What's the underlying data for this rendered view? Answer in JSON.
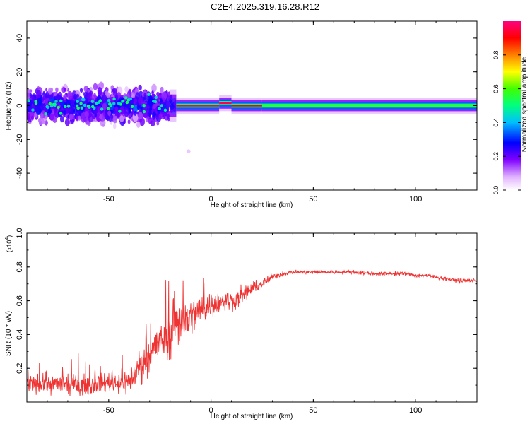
{
  "title": "C2E4.2025.319.16.28.R12",
  "chart_data": [
    {
      "type": "heatmap",
      "title": "C2E4.2025.319.16.28.R12",
      "xlabel": "Height of straight line (km)",
      "ylabel": "Frequency (Hz)",
      "xlim": [
        -90,
        130
      ],
      "ylim": [
        -50,
        50
      ],
      "xticks": [
        "-50",
        "0",
        "50",
        "100"
      ],
      "xtick_values": [
        -50,
        0,
        50,
        100
      ],
      "yticks": [
        "-40",
        "-20",
        "0",
        "20",
        "40"
      ],
      "ytick_values": [
        -40,
        -20,
        0,
        20,
        40
      ],
      "colorbar": {
        "label": "Normalized spectral amplitude",
        "range": [
          0,
          1
        ],
        "ticks": [
          "0.0",
          "0.2",
          "0.4",
          "0.6",
          "0.8"
        ],
        "tick_values": [
          0.0,
          0.2,
          0.4,
          0.6,
          0.8
        ],
        "colors": [
          "#ffffff",
          "#e0b0ff",
          "#8000ff",
          "#0000ff",
          "#00bfff",
          "#00ff80",
          "#40ff00",
          "#ffff00",
          "#ff8000",
          "#ff0000",
          "#ff0080"
        ]
      },
      "segments": [
        {
          "x": [
            -90,
            -20
          ],
          "center_hz": 0,
          "spread_hz": 14,
          "amplitude": 0.25,
          "pattern": "noisy"
        },
        {
          "x": [
            -20,
            -17
          ],
          "center_hz": 0,
          "spread_hz": 3,
          "amplitude": 0.5,
          "pattern": "transition"
        },
        {
          "x": [
            -17,
            4
          ],
          "center_hz": 0,
          "spread_hz": 1.5,
          "amplitude": 0.95,
          "pattern": "band"
        },
        {
          "x": [
            4,
            10
          ],
          "center_hz": 1.5,
          "spread_hz": 1.5,
          "amplitude": 0.95,
          "pattern": "band"
        },
        {
          "x": [
            10,
            25
          ],
          "center_hz": 0,
          "spread_hz": 1.5,
          "amplitude": 0.9,
          "pattern": "band"
        },
        {
          "x": [
            25,
            130
          ],
          "center_hz": 0,
          "spread_hz": 1.5,
          "amplitude": 0.6,
          "pattern": "band"
        }
      ],
      "outliers": [
        {
          "x": -11,
          "hz": -27
        }
      ]
    },
    {
      "type": "line",
      "xlabel": "Height of straight line (km)",
      "ylabel": "SNR (10 * v/v)",
      "y_scale_label": "(x10",
      "y_scale_exp": "4",
      "xlim": [
        -90,
        130
      ],
      "ylim": [
        0,
        1.0
      ],
      "xticks": [
        "-50",
        "0",
        "50",
        "100"
      ],
      "xtick_values": [
        -50,
        0,
        50,
        100
      ],
      "yticks": [
        "0.2",
        "0.4",
        "0.6",
        "0.8",
        "1.0"
      ],
      "ytick_values": [
        0.2,
        0.4,
        0.6,
        0.8,
        1.0
      ],
      "series": [
        {
          "name": "SNR",
          "color": "#ee3333",
          "x": [
            -90,
            -80,
            -70,
            -60,
            -50,
            -40,
            -35,
            -30,
            -25,
            -20,
            -18,
            -15,
            -10,
            -5,
            0,
            5,
            10,
            15,
            20,
            25,
            30,
            35,
            40,
            50,
            60,
            70,
            80,
            90,
            95,
            100,
            105,
            110,
            115,
            120,
            130
          ],
          "values": [
            0.1,
            0.11,
            0.1,
            0.1,
            0.12,
            0.12,
            0.2,
            0.3,
            0.35,
            0.38,
            0.5,
            0.48,
            0.5,
            0.55,
            0.58,
            0.6,
            0.6,
            0.63,
            0.67,
            0.7,
            0.74,
            0.76,
            0.77,
            0.77,
            0.77,
            0.77,
            0.76,
            0.76,
            0.76,
            0.75,
            0.75,
            0.74,
            0.73,
            0.72,
            0.72
          ],
          "noise_envelope": [
            0.06,
            0.06,
            0.06,
            0.06,
            0.06,
            0.08,
            0.1,
            0.12,
            0.12,
            0.14,
            0.2,
            0.15,
            0.12,
            0.1,
            0.08,
            0.07,
            0.06,
            0.06,
            0.04,
            0.03,
            0.02,
            0.015,
            0.012,
            0.012,
            0.012,
            0.012,
            0.012,
            0.012,
            0.012,
            0.012,
            0.012,
            0.012,
            0.012,
            0.012,
            0.012
          ]
        }
      ]
    }
  ]
}
